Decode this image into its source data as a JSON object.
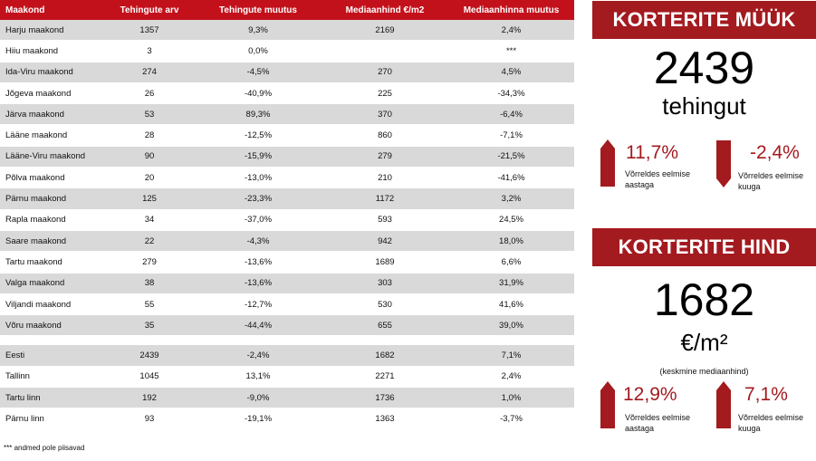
{
  "table": {
    "headers": [
      "Maakond",
      "Tehingute arv",
      "Tehingute muutus",
      "Mediaanhind €/m2",
      "Mediaanhinna muutus"
    ],
    "rows": [
      [
        "Harju maakond",
        "1357",
        "9,3%",
        "2169",
        "2,4%"
      ],
      [
        "Hiiu maakond",
        "3",
        "0,0%",
        "",
        "***"
      ],
      [
        "Ida-Viru maakond",
        "274",
        "-4,5%",
        "270",
        "4,5%"
      ],
      [
        "Jõgeva maakond",
        "26",
        "-40,9%",
        "225",
        "-34,3%"
      ],
      [
        "Järva maakond",
        "53",
        "89,3%",
        "370",
        "-6,4%"
      ],
      [
        "Lääne maakond",
        "28",
        "-12,5%",
        "860",
        "-7,1%"
      ],
      [
        "Lääne-Viru maakond",
        "90",
        "-15,9%",
        "279",
        "-21,5%"
      ],
      [
        "Põlva maakond",
        "20",
        "-13,0%",
        "210",
        "-41,6%"
      ],
      [
        "Pärnu maakond",
        "125",
        "-23,3%",
        "1172",
        "3,2%"
      ],
      [
        "Rapla maakond",
        "34",
        "-37,0%",
        "593",
        "24,5%"
      ],
      [
        "Saare maakond",
        "22",
        "-4,3%",
        "942",
        "18,0%"
      ],
      [
        "Tartu maakond",
        "279",
        "-13,6%",
        "1689",
        "6,6%"
      ],
      [
        "Valga maakond",
        "38",
        "-13,6%",
        "303",
        "31,9%"
      ],
      [
        "Viljandi maakond",
        "55",
        "-12,7%",
        "530",
        "41,6%"
      ],
      [
        "Võru maakond",
        "35",
        "-44,4%",
        "655",
        "39,0%"
      ]
    ],
    "summary_rows": [
      [
        "Eesti",
        "2439",
        "-2,4%",
        "1682",
        "7,1%"
      ],
      [
        "Tallinn",
        "1045",
        "13,1%",
        "2271",
        "2,4%"
      ],
      [
        "Tartu linn",
        "192",
        "-9,0%",
        "1736",
        "1,0%"
      ],
      [
        "Pärnu linn",
        "93",
        "-19,1%",
        "1363",
        "-3,7%"
      ]
    ],
    "footnote": "*** andmed pole piisavad"
  },
  "sales": {
    "title": "KORTERITE MÜÜK",
    "value": "2439",
    "unit": "tehingut",
    "yoy": {
      "pct": "11,7%",
      "label1": "Võrreldes eelmise",
      "label2": "aastaga",
      "direction": "up"
    },
    "mom": {
      "pct": "-2,4%",
      "label1": "Võrreldes eelmise",
      "label2": "kuuga",
      "direction": "down"
    }
  },
  "price": {
    "title": "KORTERITE HIND",
    "value": "1682",
    "unit": "€/m²",
    "note": "(keskmine mediaanhind)",
    "yoy": {
      "pct": "12,9%",
      "label1": "Võrreldes eelmise",
      "label2": "aastaga",
      "direction": "up"
    },
    "mom": {
      "pct": "7,1%",
      "label1": "Võrreldes eelmise",
      "label2": "kuuga",
      "direction": "up"
    }
  },
  "colors": {
    "header_red": "#c3111b",
    "accent_dark_red": "#a31a1f",
    "row_grey": "#d9d9d9"
  }
}
